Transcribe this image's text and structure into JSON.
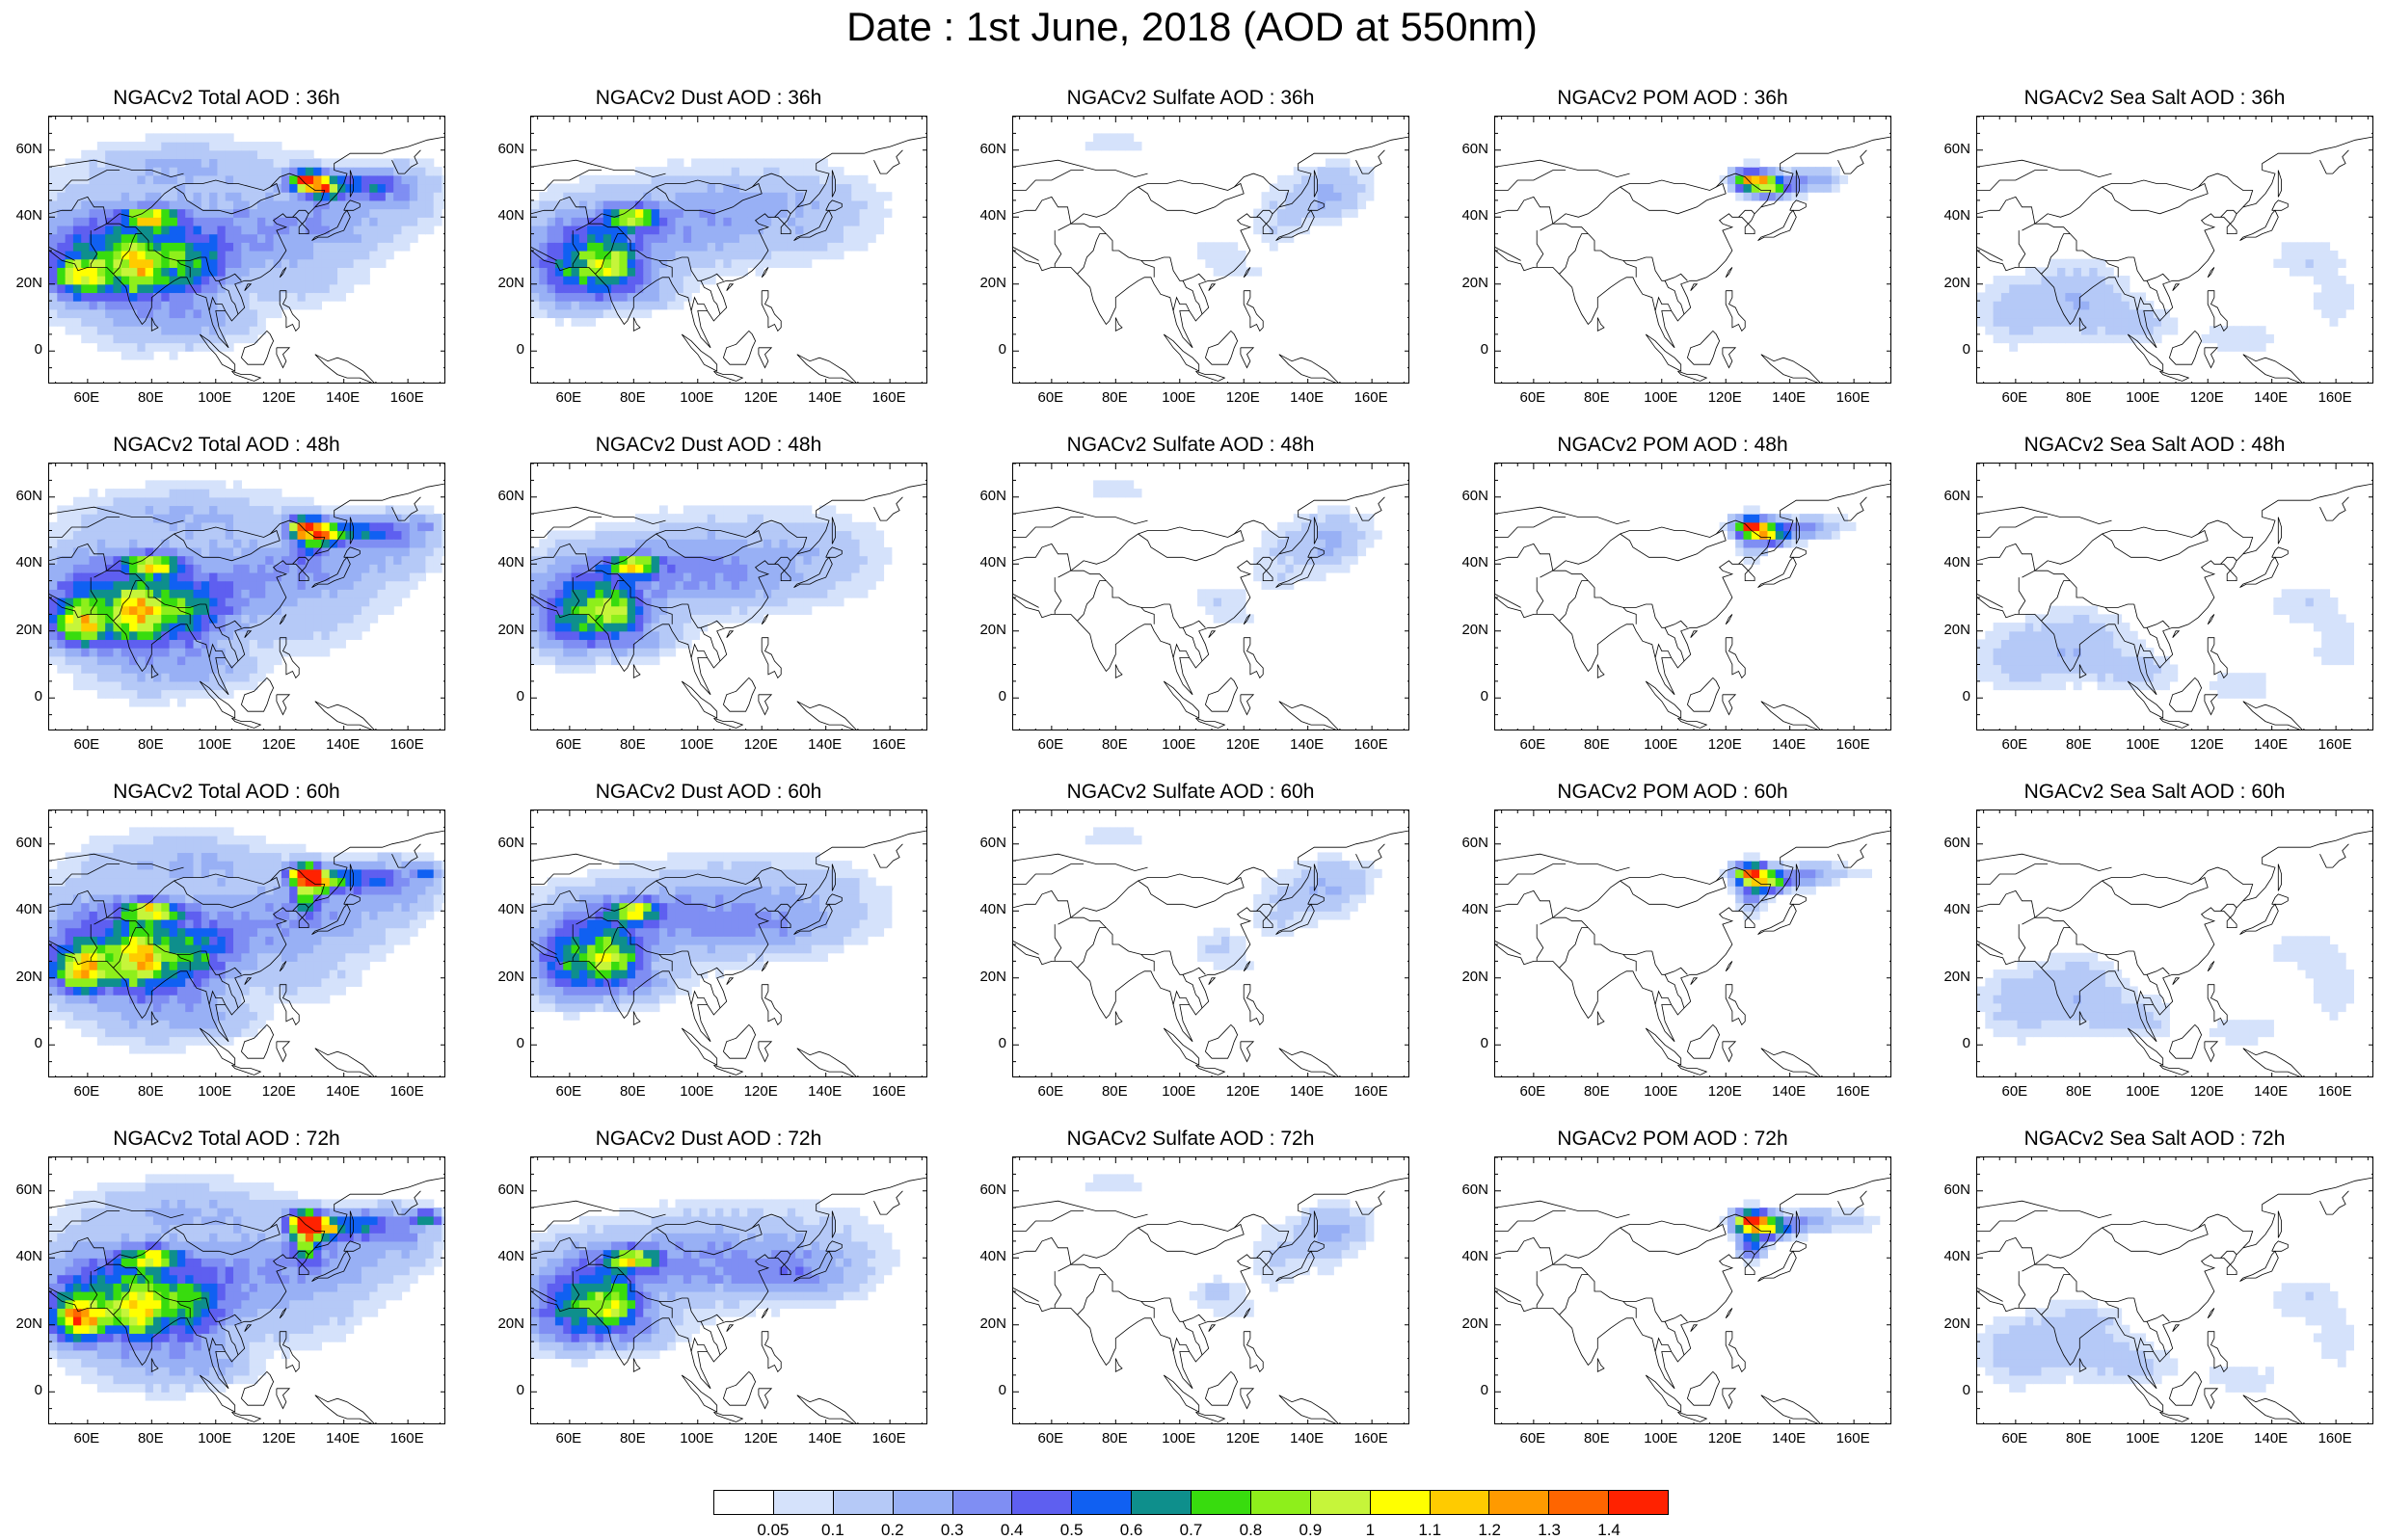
{
  "title": "Date : 1st June, 2018 (AOD at 550nm)",
  "lat_labels": [
    "60N",
    "40N",
    "20N",
    "0"
  ],
  "lon_labels": [
    "60E",
    "80E",
    "100E",
    "120E",
    "140E",
    "160E"
  ],
  "panels": [
    {
      "title": "NGACv2 Total AOD : 36h",
      "species": "total",
      "hour": 36
    },
    {
      "title": "NGACv2 Dust AOD : 36h",
      "species": "dust",
      "hour": 36
    },
    {
      "title": "NGACv2 Sulfate AOD : 36h",
      "species": "sulfate",
      "hour": 36
    },
    {
      "title": "NGACv2 POM AOD : 36h",
      "species": "pom",
      "hour": 36
    },
    {
      "title": "NGACv2 Sea Salt AOD : 36h",
      "species": "seasalt",
      "hour": 36
    },
    {
      "title": "NGACv2 Total AOD : 48h",
      "species": "total",
      "hour": 48
    },
    {
      "title": "NGACv2 Dust AOD : 48h",
      "species": "dust",
      "hour": 48
    },
    {
      "title": "NGACv2 Sulfate AOD : 48h",
      "species": "sulfate",
      "hour": 48
    },
    {
      "title": "NGACv2 POM AOD : 48h",
      "species": "pom",
      "hour": 48
    },
    {
      "title": "NGACv2 Sea Salt AOD : 48h",
      "species": "seasalt",
      "hour": 48
    },
    {
      "title": "NGACv2 Total AOD : 60h",
      "species": "total",
      "hour": 60
    },
    {
      "title": "NGACv2 Dust AOD : 60h",
      "species": "dust",
      "hour": 60
    },
    {
      "title": "NGACv2 Sulfate AOD : 60h",
      "species": "sulfate",
      "hour": 60
    },
    {
      "title": "NGACv2 POM AOD : 60h",
      "species": "pom",
      "hour": 60
    },
    {
      "title": "NGACv2 Sea Salt AOD : 60h",
      "species": "seasalt",
      "hour": 60
    },
    {
      "title": "NGACv2 Total AOD : 72h",
      "species": "total",
      "hour": 72
    },
    {
      "title": "NGACv2 Dust AOD : 72h",
      "species": "dust",
      "hour": 72
    },
    {
      "title": "NGACv2 Sulfate AOD : 72h",
      "species": "sulfate",
      "hour": 72
    },
    {
      "title": "NGACv2 POM AOD : 72h",
      "species": "pom",
      "hour": 72
    },
    {
      "title": "NGACv2 Sea Salt  AOD : 72h",
      "species": "seasalt",
      "hour": 72
    }
  ],
  "colorbar": {
    "labels": [
      "0.05",
      "0.1",
      "0.2",
      "0.3",
      "0.4",
      "0.5",
      "0.6",
      "0.7",
      "0.8",
      "0.9",
      "1",
      "1.1",
      "1.2",
      "1.3",
      "1.4"
    ],
    "colors": [
      "#ffffff",
      "#d5e2fb",
      "#b5c9f7",
      "#98b0f5",
      "#7f8ef3",
      "#5e5ff0",
      "#1060f2",
      "#0e8f8c",
      "#38dc0e",
      "#8eef1b",
      "#c6f53a",
      "#ffff00",
      "#ffcb00",
      "#ff9a00",
      "#fe6500",
      "#ff2200"
    ]
  }
}
